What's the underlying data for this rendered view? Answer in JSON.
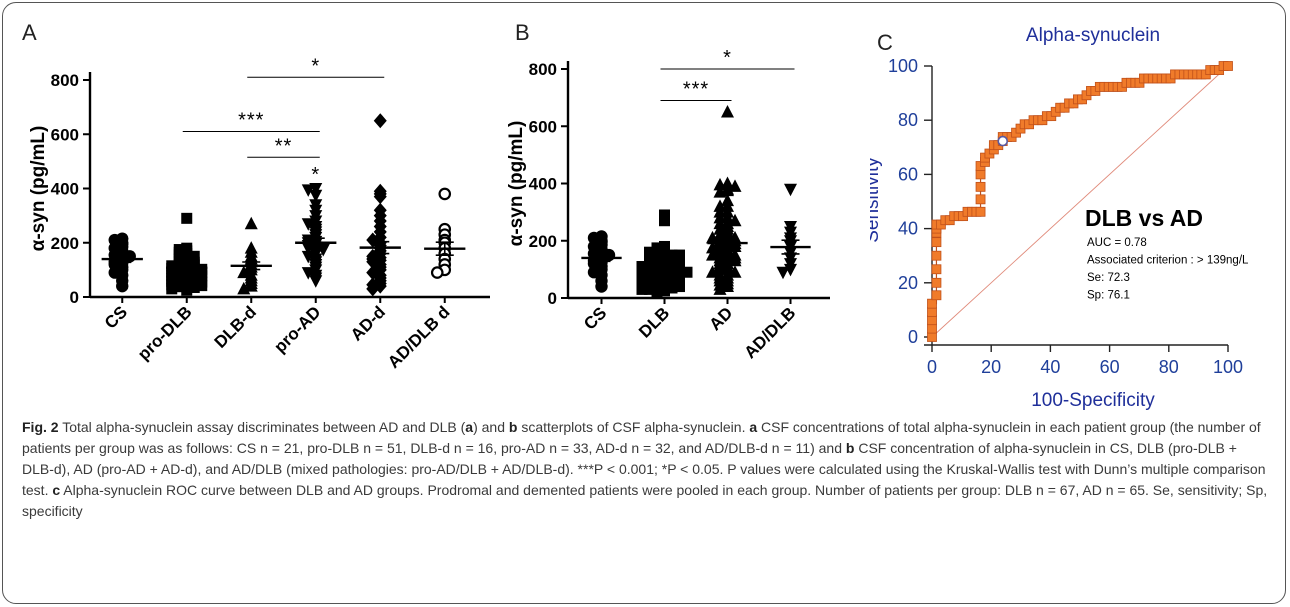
{
  "panels": {
    "a_letter": "A",
    "b_letter": "B",
    "c_letter": "C"
  },
  "colors": {
    "roc_marker": "#f07b2a",
    "roc_marker_edge": "#c0501a",
    "roc_axis_text": "#1f3f9a",
    "diagonal": "#e08a7a"
  },
  "chart_data": [
    {
      "type": "scatter",
      "panel": "A",
      "ylabel": "α-syn (pg/mL)",
      "ylim": [
        0,
        800
      ],
      "yticks": [
        0,
        200,
        400,
        600,
        800
      ],
      "categories": [
        "CS",
        "pro-DLB",
        "DLB-d",
        "pro-AD",
        "AD-d",
        "AD/DLB d"
      ],
      "markers": [
        "circle",
        "square",
        "triangle",
        "triangle-down",
        "diamond",
        "circle-open"
      ],
      "means": [
        140,
        108,
        115,
        200,
        182,
        178
      ],
      "sems": [
        12,
        8,
        14,
        17,
        22,
        24
      ],
      "values": [
        [
          215,
          210,
          200,
          195,
          185,
          180,
          170,
          160,
          155,
          150,
          140,
          135,
          130,
          125,
          120,
          110,
          100,
          90,
          80,
          60,
          40
        ],
        [
          290,
          180,
          175,
          170,
          165,
          160,
          155,
          150,
          145,
          140,
          135,
          130,
          128,
          125,
          120,
          118,
          115,
          112,
          110,
          108,
          105,
          102,
          100,
          98,
          95,
          92,
          90,
          88,
          85,
          82,
          80,
          78,
          75,
          72,
          70,
          68,
          65,
          62,
          60,
          58,
          55,
          52,
          50,
          48,
          45,
          42,
          40,
          38,
          35,
          30,
          25
        ],
        [
          270,
          180,
          165,
          150,
          140,
          130,
          120,
          110,
          100,
          90,
          80,
          70,
          60,
          50,
          40,
          30
        ],
        [
          400,
          395,
          375,
          340,
          320,
          300,
          280,
          270,
          260,
          250,
          240,
          230,
          220,
          210,
          205,
          200,
          195,
          190,
          185,
          180,
          175,
          170,
          160,
          150,
          140,
          130,
          120,
          110,
          100,
          90,
          80,
          70,
          60
        ],
        [
          650,
          390,
          380,
          370,
          320,
          300,
          280,
          260,
          240,
          220,
          210,
          200,
          190,
          180,
          170,
          160,
          150,
          145,
          140,
          135,
          130,
          120,
          110,
          100,
          90,
          80,
          70,
          60,
          50,
          45,
          40,
          30
        ],
        [
          380,
          250,
          230,
          210,
          200,
          180,
          160,
          140,
          120,
          100,
          90
        ]
      ],
      "significance": [
        {
          "from": 2,
          "to": 4,
          "label": "*",
          "y": 810
        },
        {
          "from": 1,
          "to": 3,
          "label": "***",
          "y": 610
        },
        {
          "from": 2,
          "to": 3,
          "label": "**",
          "y": 515
        },
        {
          "from": 3,
          "to": 3,
          "label": "*",
          "y": 410
        }
      ]
    },
    {
      "type": "scatter",
      "panel": "B",
      "ylabel": "α-syn (pg/mL)",
      "ylim": [
        0,
        800
      ],
      "yticks": [
        0,
        200,
        400,
        600,
        800
      ],
      "categories": [
        "CS",
        "DLB",
        "AD",
        "AD/DLB"
      ],
      "markers": [
        "circle",
        "square",
        "triangle",
        "triangle-down"
      ],
      "means": [
        140,
        115,
        192,
        178
      ],
      "sems": [
        12,
        8,
        12,
        24
      ],
      "values": [
        [
          215,
          210,
          200,
          195,
          185,
          180,
          170,
          160,
          155,
          150,
          140,
          135,
          130,
          125,
          120,
          110,
          100,
          90,
          80,
          60,
          40
        ],
        [
          290,
          270,
          180,
          175,
          170,
          165,
          160,
          155,
          150,
          145,
          140,
          135,
          130,
          128,
          125,
          120,
          118,
          115,
          112,
          110,
          108,
          105,
          102,
          100,
          98,
          95,
          92,
          90,
          88,
          85,
          82,
          80,
          78,
          75,
          72,
          70,
          68,
          65,
          62,
          60,
          58,
          55,
          52,
          50,
          48,
          45,
          42,
          40,
          38,
          35,
          30,
          25,
          160,
          150,
          140,
          130,
          120,
          110,
          100,
          90,
          80,
          70,
          60,
          50,
          40,
          30,
          20
        ],
        [
          650,
          400,
          395,
          390,
          380,
          375,
          370,
          340,
          320,
          320,
          300,
          300,
          280,
          280,
          270,
          260,
          260,
          250,
          240,
          240,
          230,
          220,
          220,
          210,
          210,
          205,
          200,
          200,
          195,
          190,
          190,
          185,
          180,
          180,
          175,
          170,
          170,
          160,
          160,
          150,
          150,
          145,
          140,
          140,
          135,
          130,
          130,
          120,
          120,
          110,
          110,
          100,
          100,
          90,
          90,
          80,
          80,
          70,
          70,
          60,
          60,
          50,
          45,
          40,
          30
        ],
        [
          380,
          250,
          230,
          210,
          200,
          180,
          160,
          140,
          120,
          100,
          90
        ]
      ],
      "significance": [
        {
          "from": 1,
          "to": 3,
          "label": "*",
          "y": 800
        },
        {
          "from": 1,
          "to": 2,
          "label": "***",
          "y": 690
        }
      ]
    },
    {
      "type": "line",
      "panel": "C",
      "title": "Alpha-synuclein",
      "xlabel": "100-Specificity",
      "ylabel": "Sensitivity",
      "xlim": [
        0,
        100
      ],
      "ylim": [
        0,
        100
      ],
      "xticks": [
        0,
        20,
        40,
        60,
        80,
        100
      ],
      "yticks": [
        0,
        20,
        40,
        60,
        80,
        100
      ],
      "comparison": "DLB vs AD",
      "stats": [
        "AUC = 0.78",
        "Associated criterion : > 139ng/L",
        "Se: 72.3",
        "Sp: 76.1"
      ],
      "criterion_point": {
        "x": 23.9,
        "y": 72.3
      },
      "x": [
        0,
        0,
        0,
        0,
        0,
        1.5,
        1.5,
        1.5,
        1.5,
        1.5,
        1.5,
        1.5,
        1.5,
        3,
        4.5,
        6,
        7.5,
        9,
        10.5,
        12,
        13.5,
        15,
        16.4,
        16.4,
        16.4,
        16.4,
        16.4,
        17.9,
        17.9,
        19.4,
        20.9,
        20.9,
        22.4,
        23.9,
        23.9,
        25.4,
        26.9,
        28.4,
        29.9,
        31.3,
        32.8,
        34.3,
        35.8,
        37.3,
        38.8,
        40.3,
        41.8,
        43.3,
        44.8,
        46.3,
        47.8,
        49.3,
        50.7,
        52.2,
        53.7,
        55.2,
        56.7,
        58.2,
        59.7,
        61.2,
        62.7,
        64.2,
        65.7,
        67.2,
        68.7,
        70.1,
        71.6,
        73.1,
        74.6,
        76.1,
        77.6,
        79.1,
        80.6,
        82.1,
        83.6,
        85.1,
        86.6,
        88.1,
        89.6,
        91,
        92.5,
        94,
        95.5,
        97,
        98.5,
        100
      ],
      "y": [
        0,
        3.1,
        6.2,
        9.2,
        12.3,
        15.4,
        20,
        25,
        30,
        35,
        38.5,
        40,
        41.5,
        41.5,
        43.1,
        43.1,
        44.6,
        44.6,
        44.6,
        46.2,
        46.2,
        46.2,
        46.2,
        50.8,
        55.4,
        60,
        63.1,
        64.6,
        66.2,
        67.7,
        69.2,
        70.8,
        70.8,
        72.3,
        73.8,
        73.8,
        73.8,
        75.4,
        76.9,
        78.5,
        78.5,
        80,
        80,
        80,
        81.5,
        81.5,
        83.1,
        84.6,
        84.6,
        86.2,
        86.2,
        87.7,
        87.7,
        89.2,
        90.8,
        90.8,
        92.3,
        92.3,
        92.3,
        92.3,
        92.3,
        92.3,
        93.8,
        93.8,
        93.8,
        93.8,
        95.4,
        95.4,
        95.4,
        95.4,
        95.4,
        95.4,
        95.4,
        96.9,
        96.9,
        96.9,
        96.9,
        96.9,
        96.9,
        96.9,
        96.9,
        98.5,
        98.5,
        98.5,
        100,
        100
      ]
    }
  ],
  "caption": {
    "fig_label": "Fig. 2",
    "line1": " Total alpha-synuclein assay discriminates between AD and DLB (",
    "a1": "a",
    "line1b": ") and ",
    "b1": "b",
    "line1c": " scatterplots of CSF alpha-synuclein. ",
    "a2": "a",
    "line1d": " CSF concentrations of total alpha-synuclein in each patient group (the number of patients per group was as follows: CS n = 21, pro-DLB n = 51, DLB-d n = 16, pro-AD n = 33, AD-d n = 32, and AD/DLB-d n = 11) and ",
    "b2": "b",
    "line2": " CSF concentration of alpha-synuclein in CS, DLB (pro-DLB + DLB-d), AD (pro-AD + AD-d), and AD/DLB (mixed pathologies: pro-AD/DLB + AD/DLB-d). ***P < 0.001; *P < 0.05. P values were calculated using the Kruskal-Wallis test with Dunn’s multiple comparison test. ",
    "c1": "c",
    "line3": " Alpha-synuclein ROC curve between DLB and AD groups. Prodromal and demented patients were pooled in each group. Number of patients per group: DLB n = 67, AD n = 65. Se, sensitivity; Sp, specificity"
  }
}
